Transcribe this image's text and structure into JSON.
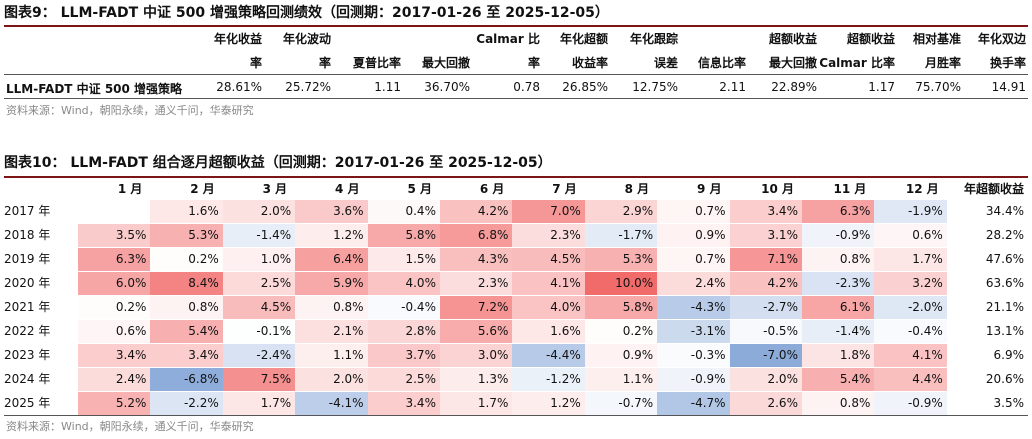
{
  "table1": {
    "title": "图表9： LLM-FADT 中证 500 增强策略回测绩效（回测期：2017-01-26 至 2025-12-05）",
    "headers": [
      [
        "",
        "年化收益"
      ],
      [
        "",
        "年化波动"
      ],
      [
        "",
        ""
      ],
      [
        "",
        ""
      ],
      [
        "Calmar 比",
        ""
      ],
      [
        "年化超额",
        ""
      ],
      [
        "年化跟踪",
        ""
      ],
      [
        "",
        ""
      ],
      [
        "超额收益",
        ""
      ],
      [
        "超额收益",
        ""
      ],
      [
        "相对基准",
        ""
      ],
      [
        "年化双边",
        ""
      ]
    ],
    "headers2": [
      "率",
      "率",
      "夏普比率",
      "最大回撤",
      "率",
      "收益率",
      "误差",
      "信息比率",
      "最大回撤",
      "Calmar 比率",
      "月胜率",
      "换手率"
    ],
    "row_label": "LLM-FADT 中证 500 增强策略",
    "values": [
      "28.61%",
      "25.72%",
      "1.11",
      "36.70%",
      "0.78",
      "26.85%",
      "12.75%",
      "2.11",
      "22.89%",
      "1.17",
      "75.70%",
      "14.91"
    ],
    "source": "资料来源：Wind，朝阳永续，通义千问，华泰研究"
  },
  "table2": {
    "title": "图表10： LLM-FADT 组合逐月超额收益（回测期：2017-01-26 至 2025-12-05）",
    "headers": [
      "1 月",
      "2 月",
      "3 月",
      "4 月",
      "5 月",
      "6 月",
      "7 月",
      "8 月",
      "9 月",
      "10 月",
      "11 月",
      "12 月",
      "年超额收益"
    ],
    "rows": [
      {
        "year": "2017 年",
        "months": [
          "",
          "1.6%",
          "2.0%",
          "3.6%",
          "0.4%",
          "4.2%",
          "7.0%",
          "2.9%",
          "0.7%",
          "3.4%",
          "6.3%",
          "-1.9%"
        ],
        "annual": "34.4%"
      },
      {
        "year": "2018 年",
        "months": [
          "3.5%",
          "5.3%",
          "-1.4%",
          "1.2%",
          "5.8%",
          "6.8%",
          "2.3%",
          "-1.7%",
          "0.9%",
          "3.1%",
          "-0.9%",
          "0.6%"
        ],
        "annual": "28.2%"
      },
      {
        "year": "2019 年",
        "months": [
          "6.3%",
          "0.2%",
          "1.0%",
          "6.4%",
          "1.5%",
          "4.3%",
          "4.5%",
          "5.3%",
          "0.7%",
          "7.1%",
          "0.8%",
          "1.7%"
        ],
        "annual": "47.6%"
      },
      {
        "year": "2020 年",
        "months": [
          "6.0%",
          "8.4%",
          "2.5%",
          "5.9%",
          "4.0%",
          "2.3%",
          "4.1%",
          "10.0%",
          "2.4%",
          "4.2%",
          "-2.3%",
          "3.2%"
        ],
        "annual": "63.6%"
      },
      {
        "year": "2021 年",
        "months": [
          "0.2%",
          "0.8%",
          "4.5%",
          "0.8%",
          "-0.4%",
          "7.2%",
          "4.0%",
          "5.8%",
          "-4.3%",
          "-2.7%",
          "6.1%",
          "-2.0%"
        ],
        "annual": "21.1%"
      },
      {
        "year": "2022 年",
        "months": [
          "0.6%",
          "5.4%",
          "-0.1%",
          "2.1%",
          "2.8%",
          "5.6%",
          "1.6%",
          "0.2%",
          "-3.1%",
          "-0.5%",
          "-1.4%",
          "-0.4%"
        ],
        "annual": "13.1%"
      },
      {
        "year": "2023 年",
        "months": [
          "3.4%",
          "3.4%",
          "-2.4%",
          "1.1%",
          "3.7%",
          "3.0%",
          "-4.4%",
          "0.9%",
          "-0.3%",
          "-7.0%",
          "1.8%",
          "4.1%"
        ],
        "annual": "6.9%"
      },
      {
        "year": "2024 年",
        "months": [
          "2.4%",
          "-6.8%",
          "7.5%",
          "2.0%",
          "2.5%",
          "1.3%",
          "-1.2%",
          "1.1%",
          "-0.9%",
          "2.0%",
          "5.4%",
          "4.4%"
        ],
        "annual": "20.6%"
      },
      {
        "year": "2025 年",
        "months": [
          "5.2%",
          "-2.2%",
          "1.7%",
          "-4.1%",
          "3.4%",
          "1.7%",
          "1.2%",
          "-0.7%",
          "-4.7%",
          "2.6%",
          "0.8%",
          "-0.9%"
        ],
        "annual": "3.5%"
      }
    ],
    "source": "资料来源：Wind，朝阳永续，通义千问，华泰研究"
  },
  "colors": {
    "positive": "#f26b6b",
    "negative": "#5b87c9",
    "rule": "#7a1616"
  }
}
